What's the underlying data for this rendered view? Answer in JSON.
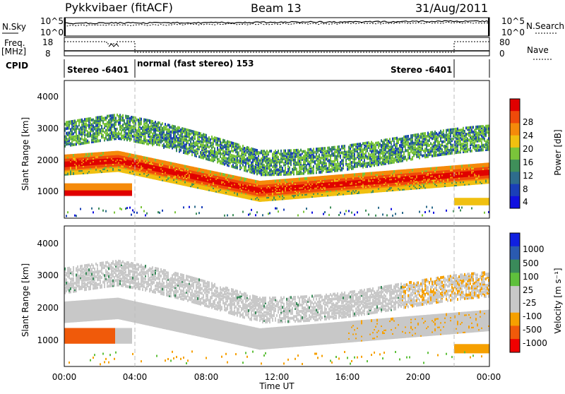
{
  "header": {
    "station": "Pykkvibaer (fitACF)",
    "beam": "Beam 13",
    "date": "31/Aug/2011"
  },
  "colors": {
    "power": [
      "#1010e0",
      "#1a3fb8",
      "#2e6c8c",
      "#3f8f5a",
      "#7ac43a",
      "#f0c010",
      "#f58a0a",
      "#ef4a0a",
      "#e00000"
    ],
    "velocity": [
      "#f00000",
      "#f05a0a",
      "#f6a000",
      "#c8c8c8",
      "#c8c8c8",
      "#5fc03c",
      "#3a8a5a",
      "#2a5ab0",
      "#1020e0"
    ]
  },
  "chart_data": [
    {
      "type": "line",
      "name": "noise-panel",
      "left_label": "N.Sky",
      "right_label": "N.Search",
      "yticks_left": [
        "10^5",
        "10^0"
      ],
      "yticks_right": [
        "10^5",
        "10^0"
      ]
    },
    {
      "type": "line",
      "name": "frequency-panel",
      "left_label_1": "Freq.",
      "left_label_2": "[MHz]",
      "right_label": "Nave",
      "yticks_left": [
        "18",
        "8"
      ],
      "yticks_right": [
        "80",
        "0"
      ]
    },
    {
      "type": "table",
      "name": "cpid-panel",
      "label": "CPID",
      "segments": [
        {
          "text": "Stereo -6401",
          "start_hour": 0
        },
        {
          "text": "normal (fast stereo) 153",
          "start_hour": 4
        },
        {
          "text": "Stereo -6401",
          "start_hour": 22
        }
      ]
    },
    {
      "type": "heatmap",
      "name": "power-panel",
      "ylabel": "Slant Range [km]",
      "yticks": [
        "4000",
        "3000",
        "2000",
        "1000"
      ],
      "ylim": [
        200,
        4600
      ],
      "colorbar_label": "Power [dB]",
      "colorbar_ticks": [
        "28",
        "24",
        "20",
        "16",
        "12",
        "8",
        "4"
      ],
      "xlim_hours": [
        0,
        24
      ]
    },
    {
      "type": "heatmap",
      "name": "velocity-panel",
      "ylabel": "Slant Range [km]",
      "yticks": [
        "4000",
        "3000",
        "2000",
        "1000"
      ],
      "ylim": [
        200,
        4600
      ],
      "colorbar_label": "Velocity [m s⁻¹]",
      "colorbar_ticks": [
        "1000",
        "500",
        "100",
        "25",
        "-25",
        "-100",
        "-500",
        "-1000"
      ],
      "xlim_hours": [
        0,
        24
      ]
    }
  ],
  "xaxis": {
    "label": "Time UT",
    "ticks": [
      "00:00",
      "04:00",
      "08:00",
      "12:00",
      "16:00",
      "20:00",
      "00:00"
    ]
  }
}
